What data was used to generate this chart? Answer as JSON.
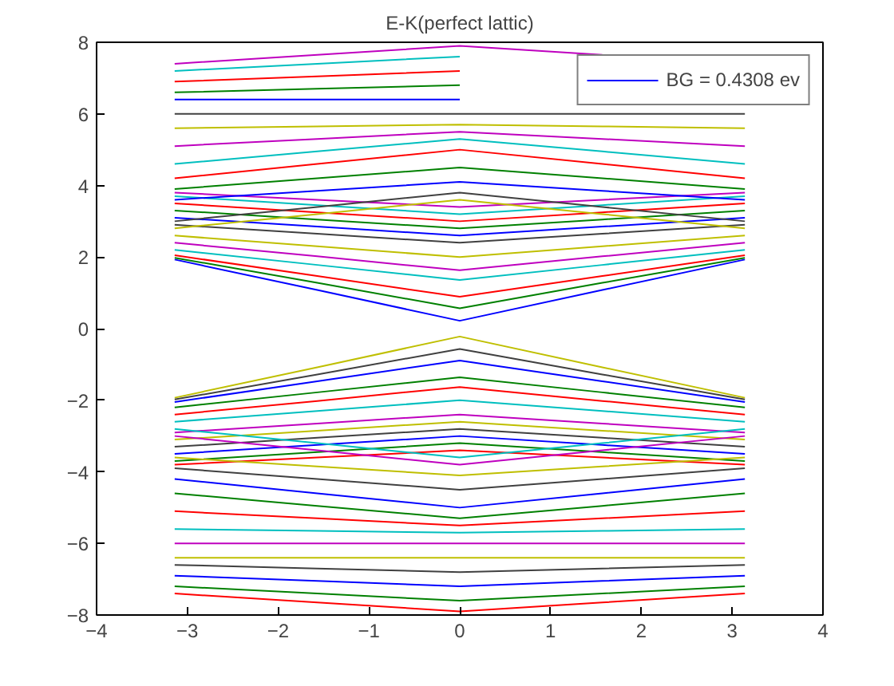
{
  "chart_data": {
    "type": "line",
    "title": "E-K(perfect lattic)",
    "x": [
      -3.14,
      -1.57,
      0,
      1.57,
      3.14
    ],
    "xlim": [
      -4,
      4
    ],
    "xticks": [
      -4,
      -3,
      -2,
      -1,
      0,
      1,
      2,
      3,
      4
    ],
    "ylim": [
      -8,
      8
    ],
    "yticks": [
      -8,
      -6,
      -4,
      -2,
      0,
      2,
      4,
      6,
      8
    ],
    "grid": false,
    "legend": "top right",
    "line_style": "solid",
    "series": [
      {
        "name": "BG = 0.4308 ev",
        "color": "#0000ff",
        "values": [
          1.93,
          1.08,
          0.22,
          1.08,
          1.93
        ]
      },
      {
        "color": "#008000",
        "values": [
          1.98,
          1.28,
          0.57,
          1.28,
          1.98
        ]
      },
      {
        "color": "#ff0000",
        "values": [
          2.05,
          1.47,
          0.89,
          1.47,
          2.05
        ]
      },
      {
        "color": "#00bfbf",
        "values": [
          2.2,
          1.78,
          1.36,
          1.78,
          2.2
        ]
      },
      {
        "color": "#bf00bf",
        "values": [
          2.4,
          2.02,
          1.63,
          2.02,
          2.4
        ]
      },
      {
        "color": "#bfbf00",
        "values": [
          2.6,
          2.3,
          2.0,
          2.3,
          2.6
        ]
      },
      {
        "color": "#404040",
        "values": [
          2.9,
          2.65,
          2.4,
          2.65,
          2.9
        ]
      },
      {
        "color": "#0000ff",
        "values": [
          3.1,
          2.85,
          2.6,
          2.85,
          3.1
        ]
      },
      {
        "color": "#008000",
        "values": [
          3.3,
          3.05,
          2.8,
          3.05,
          3.3
        ]
      },
      {
        "color": "#ff0000",
        "values": [
          3.5,
          3.25,
          3.0,
          3.25,
          3.5
        ]
      },
      {
        "color": "#00bfbf",
        "values": [
          3.7,
          3.45,
          3.2,
          3.45,
          3.7
        ]
      },
      {
        "color": "#bf00bf",
        "values": [
          3.8,
          3.6,
          3.4,
          3.6,
          3.8
        ]
      },
      {
        "color": "#bfbf00",
        "values": [
          2.8,
          3.2,
          3.6,
          3.2,
          2.8
        ]
      },
      {
        "color": "#404040",
        "values": [
          3.0,
          3.4,
          3.8,
          3.4,
          3.0
        ]
      },
      {
        "color": "#0000ff",
        "values": [
          3.6,
          3.85,
          4.1,
          3.85,
          3.6
        ]
      },
      {
        "color": "#008000",
        "values": [
          3.9,
          4.2,
          4.5,
          4.2,
          3.9
        ]
      },
      {
        "color": "#ff0000",
        "values": [
          4.2,
          4.6,
          5.0,
          4.6,
          4.2
        ]
      },
      {
        "color": "#00bfbf",
        "values": [
          4.6,
          4.95,
          5.3,
          4.95,
          4.6
        ]
      },
      {
        "color": "#bf00bf",
        "values": [
          5.1,
          5.3,
          5.5,
          5.3,
          5.1
        ]
      },
      {
        "color": "#bfbf00",
        "values": [
          5.6,
          5.65,
          5.7,
          5.65,
          5.6
        ]
      },
      {
        "color": "#404040",
        "values": [
          6.0,
          6.0,
          6.0,
          6.0,
          6.0
        ]
      },
      {
        "color": "#0000ff",
        "values": [
          6.4,
          6.4,
          6.4,
          null,
          null
        ]
      },
      {
        "color": "#008000",
        "values": [
          6.6,
          6.7,
          6.8,
          null,
          null
        ]
      },
      {
        "color": "#ff0000",
        "values": [
          6.9,
          7.05,
          7.2,
          null,
          null
        ]
      },
      {
        "color": "#00bfbf",
        "values": [
          7.2,
          7.4,
          7.6,
          null,
          null
        ]
      },
      {
        "color": "#bf00bf",
        "values": [
          7.4,
          7.65,
          7.9,
          7.65,
          null
        ]
      },
      {
        "color": "#bfbf00",
        "values": [
          -1.93,
          -1.08,
          -0.22,
          -1.08,
          -1.93
        ]
      },
      {
        "color": "#404040",
        "values": [
          -1.98,
          -1.28,
          -0.57,
          -1.28,
          -1.98
        ]
      },
      {
        "color": "#0000ff",
        "values": [
          -2.05,
          -1.47,
          -0.89,
          -1.47,
          -2.05
        ]
      },
      {
        "color": "#008000",
        "values": [
          -2.2,
          -1.78,
          -1.36,
          -1.78,
          -2.2
        ]
      },
      {
        "color": "#ff0000",
        "values": [
          -2.4,
          -2.02,
          -1.63,
          -2.02,
          -2.4
        ]
      },
      {
        "color": "#00bfbf",
        "values": [
          -2.6,
          -2.3,
          -2.0,
          -2.3,
          -2.6
        ]
      },
      {
        "color": "#bf00bf",
        "values": [
          -2.9,
          -2.65,
          -2.4,
          -2.65,
          -2.9
        ]
      },
      {
        "color": "#bfbf00",
        "values": [
          -3.1,
          -2.85,
          -2.6,
          -2.85,
          -3.1
        ]
      },
      {
        "color": "#404040",
        "values": [
          -3.3,
          -3.05,
          -2.8,
          -3.05,
          -3.3
        ]
      },
      {
        "color": "#0000ff",
        "values": [
          -3.5,
          -3.25,
          -3.0,
          -3.25,
          -3.5
        ]
      },
      {
        "color": "#008000",
        "values": [
          -3.7,
          -3.45,
          -3.2,
          -3.45,
          -3.7
        ]
      },
      {
        "color": "#ff0000",
        "values": [
          -3.8,
          -3.6,
          -3.4,
          -3.6,
          -3.8
        ]
      },
      {
        "color": "#00bfbf",
        "values": [
          -2.8,
          -3.2,
          -3.6,
          -3.2,
          -2.8
        ]
      },
      {
        "color": "#bf00bf",
        "values": [
          -3.0,
          -3.4,
          -3.8,
          -3.4,
          -3.0
        ]
      },
      {
        "color": "#bfbf00",
        "values": [
          -3.6,
          -3.85,
          -4.1,
          -3.85,
          -3.6
        ]
      },
      {
        "color": "#404040",
        "values": [
          -3.9,
          -4.2,
          -4.5,
          -4.2,
          -3.9
        ]
      },
      {
        "color": "#0000ff",
        "values": [
          -4.2,
          -4.6,
          -5.0,
          -4.6,
          -4.2
        ]
      },
      {
        "color": "#008000",
        "values": [
          -4.6,
          -4.95,
          -5.3,
          -4.95,
          -4.6
        ]
      },
      {
        "color": "#ff0000",
        "values": [
          -5.1,
          -5.3,
          -5.5,
          -5.3,
          -5.1
        ]
      },
      {
        "color": "#00bfbf",
        "values": [
          -5.6,
          -5.65,
          -5.7,
          -5.65,
          -5.6
        ]
      },
      {
        "color": "#bf00bf",
        "values": [
          -6.0,
          -6.0,
          -6.0,
          -6.0,
          -6.0
        ]
      },
      {
        "color": "#bfbf00",
        "values": [
          -6.4,
          -6.4,
          -6.4,
          -6.4,
          -6.4
        ]
      },
      {
        "color": "#404040",
        "values": [
          -6.6,
          -6.7,
          -6.8,
          -6.7,
          -6.6
        ]
      },
      {
        "color": "#0000ff",
        "values": [
          -6.9,
          -7.05,
          -7.2,
          -7.05,
          -6.9
        ]
      },
      {
        "color": "#008000",
        "values": [
          -7.2,
          -7.4,
          -7.6,
          -7.4,
          -7.2
        ]
      },
      {
        "color": "#ff0000",
        "values": [
          -7.4,
          -7.65,
          -7.9,
          -7.65,
          -7.4
        ]
      }
    ]
  }
}
